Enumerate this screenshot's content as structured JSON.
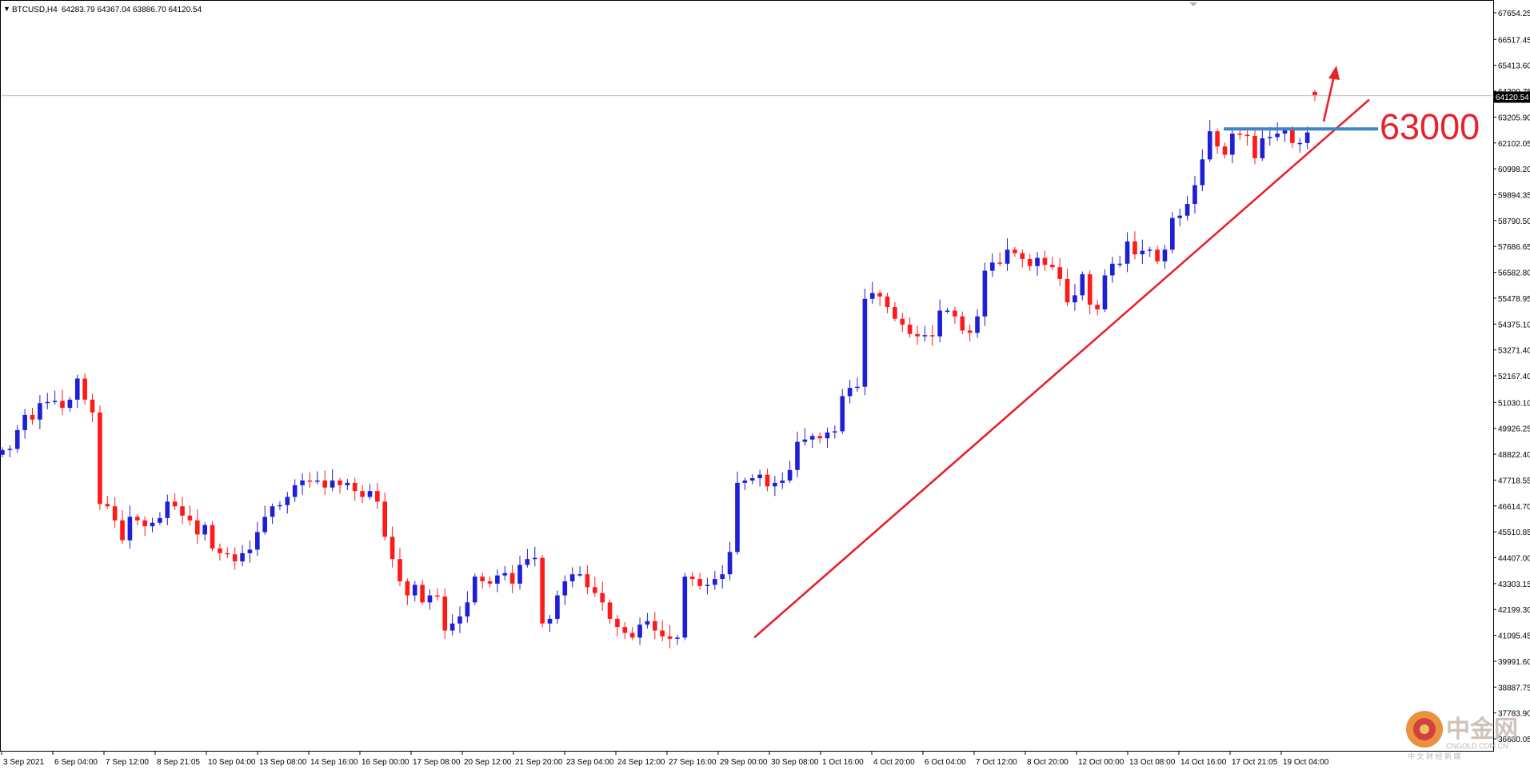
{
  "window": {
    "symbol_title": "BTCUSD,H4",
    "menu_glyph": "▼"
  },
  "header": {
    "ohlc": "64283.79 64367.04 63886.70 64120.54"
  },
  "current_price": "64120.54",
  "annotation": {
    "level_label": "63000"
  },
  "watermark": {
    "brand": "中金网",
    "domain": "CNGOLD.COM.CN",
    "slogan": "中 文 财 经 新 媒"
  },
  "colors": {
    "bull": "#1f1fd6",
    "bear": "#ff1a1a",
    "trendline": "#e8222a",
    "resistance": "#3f86c6",
    "arrow": "#e8222a",
    "price_line": "#c0c0c0",
    "axis": "#000000"
  },
  "chart_data": {
    "type": "candlestick",
    "title": "BTCUSD,H4",
    "timeframe": "H4",
    "ylim": [
      36600,
      68200
    ],
    "y_ticks": [
      "67654.25",
      "66517.45",
      "65413.60",
      "64309.75",
      "63205.90",
      "62102.05",
      "60998.20",
      "59894.35",
      "58790.50",
      "57686.65",
      "56582.80",
      "55478.95",
      "54375.10",
      "53271.40",
      "52167.40",
      "51030.10",
      "49926.25",
      "48822.40",
      "47718.55",
      "46614.70",
      "45510.85",
      "44407.00",
      "43303.15",
      "42199.30",
      "41095.45",
      "39991.60",
      "38887.75",
      "37783.90",
      "36680.05"
    ],
    "x_ticks": [
      "3 Sep 2021",
      "6 Sep 04:00",
      "7 Sep 12:00",
      "8 Sep 21:05",
      "10 Sep 04:00",
      "13 Sep 08:00",
      "14 Sep 16:00",
      "16 Sep 00:00",
      "17 Sep 08:00",
      "20 Sep 12:00",
      "21 Sep 20:00",
      "23 Sep 04:00",
      "24 Sep 12:00",
      "27 Sep 16:00",
      "29 Sep 00:00",
      "30 Sep 08:00",
      "1 Oct 16:00",
      "4 Oct 20:00",
      "6 Oct 04:00",
      "7 Oct 12:00",
      "8 Oct 20:00",
      "12 Oct 00:00",
      "13 Oct 08:00",
      "14 Oct 16:00",
      "17 Oct 21:05",
      "19 Oct 04:00"
    ],
    "last_ohlc": {
      "open": 64283.79,
      "high": 64367.04,
      "low": 63886.7,
      "close": 64120.54
    },
    "closes": [
      49000,
      49050,
      49850,
      50500,
      50300,
      51000,
      51050,
      51100,
      50800,
      51150,
      52050,
      51150,
      50600,
      46700,
      46600,
      46000,
      45150,
      46150,
      46000,
      45750,
      45900,
      46100,
      46800,
      46600,
      46200,
      46000,
      45400,
      45800,
      44800,
      44600,
      44550,
      44250,
      44600,
      44750,
      45500,
      46150,
      46600,
      46650,
      47000,
      47500,
      47700,
      47650,
      47700,
      47400,
      47700,
      47500,
      47600,
      47250,
      47000,
      47250,
      46800,
      45300,
      44350,
      43400,
      42800,
      43250,
      42500,
      42800,
      42750,
      41300,
      41600,
      41900,
      42500,
      43600,
      43400,
      43300,
      43650,
      43750,
      43300,
      44100,
      44350,
      44400,
      41600,
      41800,
      42800,
      43400,
      43700,
      43700,
      43150,
      42900,
      42500,
      41800,
      41450,
      41200,
      41000,
      41550,
      41700,
      41300,
      41050,
      40950,
      41000,
      43600,
      43500,
      43200,
      43250,
      43500,
      43700,
      44650,
      47600,
      47700,
      47800,
      47950,
      47450,
      47600,
      47700,
      48150,
      49350,
      49450,
      49600,
      49500,
      49750,
      49800,
      51300,
      51650,
      51700,
      55450,
      55700,
      55550,
      55100,
      54600,
      54350,
      53950,
      53850,
      53900,
      53850,
      54950,
      54950,
      54700,
      54100,
      54000,
      54700,
      56650,
      57000,
      56950,
      57550,
      57400,
      57150,
      56850,
      57200,
      56900,
      56800,
      56300,
      55300,
      55600,
      56500,
      55200,
      55000,
      56450,
      56950,
      56950,
      57900,
      57350,
      57500,
      57550,
      57050,
      57550,
      58900,
      59000,
      59500,
      60300,
      61400,
      62600,
      61950,
      61600,
      62500,
      62450,
      62400,
      61450,
      62300,
      62350,
      62500,
      62650,
      62100,
      62100,
      62550,
      64120
    ],
    "trendline": {
      "from": [
        "29 Sep 00:00",
        41000
      ],
      "to": [
        "19 Oct 12:00",
        63950
      ]
    },
    "resistance_level": 63000,
    "annotations": [
      "63000"
    ]
  }
}
